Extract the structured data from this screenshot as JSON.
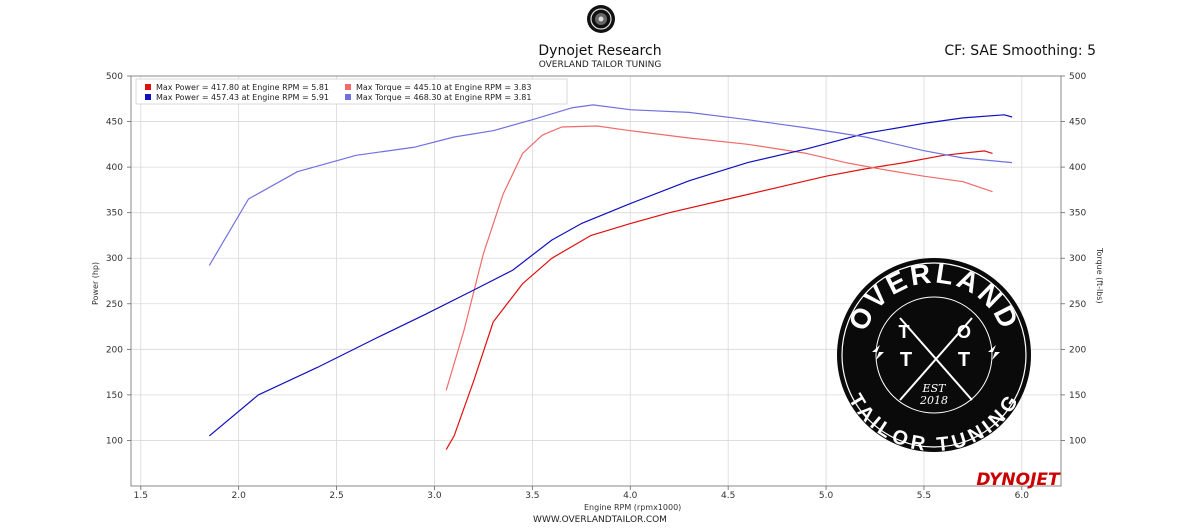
{
  "header": {
    "title": "Dynojet Research",
    "subtitle": "OVERLAND TAILOR TUNING",
    "cf_label": "CF: SAE Smoothing: 5"
  },
  "footer": {
    "url": "WWW.OVERLANDTAILOR.COM"
  },
  "watermark": {
    "brand_text": "DYNOJET",
    "badge_top": "OVERLAND",
    "badge_bottom": "TAILOR TUNING",
    "badge_letters": [
      "T",
      "O",
      "T",
      "T"
    ],
    "badge_est": "EST",
    "badge_year": "2018"
  },
  "colors": {
    "power_1": "#e01010",
    "torque_1": "#f06a6a",
    "power_2": "#1010c0",
    "torque_2": "#7070e0",
    "grid": "#d9d9d9",
    "frame": "#888888"
  },
  "chart_data": {
    "type": "line",
    "title": "Dynojet Research",
    "subtitle": "OVERLAND TAILOR TUNING",
    "xlabel": "Engine RPM (rpmx1000)",
    "ylabel_left": "Power (hp)",
    "ylabel_right": "Torque (ft-lbs)",
    "xlim": [
      1.45,
      6.2
    ],
    "ylim": [
      50,
      500
    ],
    "xticks": [
      "1.5",
      "2.0",
      "2.5",
      "3.0",
      "3.5",
      "4.0",
      "4.5",
      "5.0",
      "5.5",
      "6.0"
    ],
    "yticks_left": [
      "100",
      "150",
      "200",
      "250",
      "300",
      "350",
      "400",
      "450",
      "500"
    ],
    "yticks_right": [
      "100",
      "150",
      "200",
      "250",
      "300",
      "350",
      "400",
      "450",
      "500"
    ],
    "grid": true,
    "legend_position": "top-left",
    "legend": [
      "Max Power = 417.80 at Engine RPM = 5.81",
      "Max Torque = 445.10 at Engine RPM = 3.83",
      "Max Power = 457.43 at Engine RPM = 5.91",
      "Max Torque = 468.30 at Engine RPM = 3.81"
    ],
    "series": [
      {
        "name": "Max Power = 417.80 at Engine RPM = 5.81",
        "axis": "left",
        "color": "#e01010",
        "x": [
          3.06,
          3.1,
          3.2,
          3.3,
          3.45,
          3.6,
          3.8,
          4.0,
          4.2,
          4.5,
          4.8,
          5.0,
          5.2,
          5.4,
          5.6,
          5.81,
          5.85
        ],
        "y": [
          90,
          105,
          165,
          230,
          272,
          300,
          325,
          338,
          350,
          365,
          380,
          390,
          398,
          405,
          413,
          417.8,
          415
        ]
      },
      {
        "name": "Max Torque = 445.10 at Engine RPM = 3.83",
        "axis": "right",
        "color": "#f06a6a",
        "x": [
          3.06,
          3.15,
          3.25,
          3.35,
          3.45,
          3.55,
          3.65,
          3.83,
          4.0,
          4.3,
          4.6,
          4.9,
          5.1,
          5.3,
          5.5,
          5.7,
          5.85
        ],
        "y": [
          155,
          220,
          305,
          370,
          415,
          435,
          444,
          445.1,
          440,
          432,
          425,
          415,
          405,
          397,
          390,
          384,
          373
        ]
      },
      {
        "name": "Max Power = 457.43 at Engine RPM = 5.91",
        "axis": "left",
        "color": "#1010c0",
        "x": [
          1.85,
          2.1,
          2.4,
          2.7,
          2.95,
          3.2,
          3.4,
          3.6,
          3.75,
          4.0,
          4.3,
          4.6,
          4.9,
          5.2,
          5.5,
          5.7,
          5.91,
          5.95
        ],
        "y": [
          105,
          150,
          180,
          212,
          238,
          265,
          287,
          320,
          338,
          360,
          385,
          405,
          420,
          437,
          448,
          454,
          457.43,
          455
        ]
      },
      {
        "name": "Max Torque = 468.30 at Engine RPM = 3.81",
        "axis": "right",
        "color": "#7070e0",
        "x": [
          1.85,
          2.05,
          2.3,
          2.6,
          2.9,
          3.1,
          3.3,
          3.5,
          3.7,
          3.81,
          4.0,
          4.3,
          4.6,
          4.9,
          5.2,
          5.5,
          5.7,
          5.95
        ],
        "y": [
          292,
          365,
          395,
          413,
          422,
          433,
          440,
          452,
          465,
          468.3,
          463,
          460,
          452,
          443,
          433,
          418,
          410,
          405
        ]
      }
    ]
  }
}
